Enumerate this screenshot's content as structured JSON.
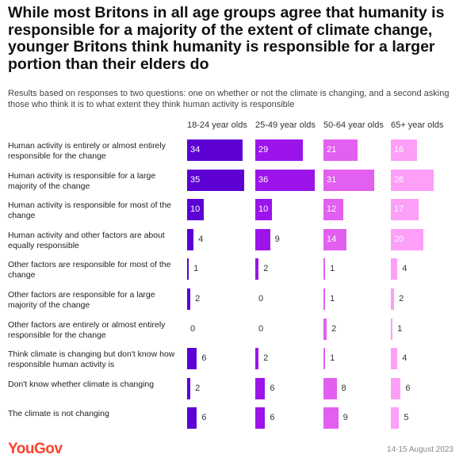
{
  "title": "While most Britons in all age groups agree that humanity is responsible for a majority of the extent of climate change, younger Britons think humanity is responsible for a larger portion than their elders do",
  "subtitle": "Results based on responses to two questions: one on whether or not the climate is changing, and a second asking those who think it is to what extent they think human activity is responsible",
  "source": "YouGov",
  "date": "14-15 August 2023",
  "colors": {
    "col1": "#5c00d3",
    "col2": "#9b14ea",
    "col3": "#e25ff0",
    "col4": "#fd9ef7",
    "brand": "#ff412c"
  },
  "chart_data": {
    "type": "bar",
    "categories": [
      "Human activity is entirely or almost entirely responsible for the change",
      "Human activity is responsible for a large majority of the change",
      "Human activity is responsible for most of the change",
      "Human activity and other factors are about equally responsible",
      "Other factors are responsible for most of the change",
      "Other factors are responsible for a large majority of the change",
      "Other factors are entirely or almost entirely responsible for the change",
      "Think climate is changing but don't know how responsible human activity is",
      "Don't know whether climate is changing",
      "The climate is not changing"
    ],
    "series": [
      {
        "name": "18-24 year olds",
        "values": [
          34,
          35,
          10,
          4,
          1,
          2,
          0,
          6,
          2,
          6
        ]
      },
      {
        "name": "25-49 year olds",
        "values": [
          29,
          36,
          10,
          9,
          2,
          0,
          0,
          2,
          6,
          6
        ]
      },
      {
        "name": "50-64 year olds",
        "values": [
          21,
          31,
          12,
          14,
          1,
          1,
          2,
          1,
          8,
          9
        ]
      },
      {
        "name": "65+ year olds",
        "values": [
          16,
          26,
          17,
          20,
          4,
          2,
          1,
          4,
          6,
          5
        ]
      }
    ]
  }
}
